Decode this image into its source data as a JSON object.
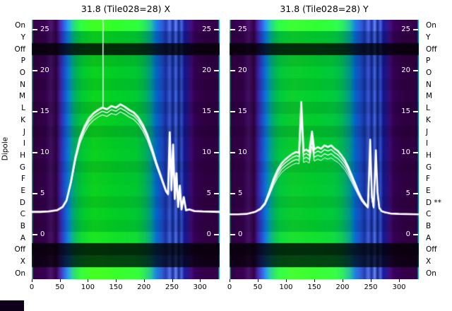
{
  "figure": {
    "dipole_label": "Dipole"
  },
  "row_labels_left": [
    "On",
    "Y",
    "Off",
    "P",
    "O",
    "N",
    "M",
    "L",
    "K",
    "J",
    "I",
    "H",
    "G",
    "F",
    "E",
    "D",
    "C",
    "B",
    "A",
    "Off",
    "X",
    "On"
  ],
  "row_labels_right": [
    "On",
    "Y",
    "Off",
    "P",
    "O",
    "N",
    "M",
    "L",
    "K",
    "J",
    "I",
    "H",
    "G",
    "F",
    "E",
    "D **",
    "C",
    "B",
    "A",
    "Off",
    "X",
    "On"
  ],
  "chart_data": [
    {
      "type": "heatmap",
      "title": "31.8 (Tile028=28) X",
      "x_ticks": [
        0,
        50,
        100,
        150,
        200,
        250,
        300
      ],
      "x_range": [
        0,
        335
      ],
      "y_ticks_inner": [
        25,
        20,
        15,
        10,
        5,
        0
      ],
      "v_top": 26.2,
      "v_bottom": -5.4,
      "show_right_ticks": true,
      "colormap_stops": [
        [
          0.0,
          "#00b478"
        ],
        [
          0.006,
          "#2e0040"
        ],
        [
          0.07,
          "#320048"
        ],
        [
          0.1,
          "#401060"
        ],
        [
          0.128,
          "#2e0040"
        ],
        [
          0.148,
          "#3c1e96"
        ],
        [
          0.168,
          "#1e46c8"
        ],
        [
          0.192,
          "#0a78d2"
        ],
        [
          0.213,
          "#00a08c"
        ],
        [
          0.238,
          "#00b450"
        ],
        [
          0.268,
          "#00c832"
        ],
        [
          0.33,
          "#0cd21e"
        ],
        [
          0.45,
          "#00cd26"
        ],
        [
          0.555,
          "#00c832"
        ],
        [
          0.6,
          "#00b44e"
        ],
        [
          0.635,
          "#00968c"
        ],
        [
          0.665,
          "#0064c8"
        ],
        [
          0.695,
          "#1e46be"
        ],
        [
          0.715,
          "#12309b"
        ],
        [
          0.735,
          "#3c5ad2"
        ],
        [
          0.752,
          "#0c2488"
        ],
        [
          0.768,
          "#4668e1"
        ],
        [
          0.783,
          "#0a1e78"
        ],
        [
          0.798,
          "#3250c8"
        ],
        [
          0.813,
          "#14148c"
        ],
        [
          0.83,
          "#1e1482"
        ],
        [
          0.85,
          "#3c0a6e"
        ],
        [
          0.87,
          "#320050"
        ],
        [
          0.93,
          "#2e0040"
        ],
        [
          0.993,
          "#2e0040"
        ],
        [
          1.0,
          "#0096b4"
        ]
      ],
      "rows": [
        [
          1.15,
          60,
          40,
          0
        ],
        [
          0.95,
          0,
          0,
          0
        ],
        [
          0.22,
          0,
          0,
          0
        ],
        [
          0.92,
          0,
          0,
          0
        ],
        [
          1.0,
          0,
          0,
          0
        ],
        [
          0.94,
          0,
          0,
          0
        ],
        [
          1.02,
          0,
          0,
          0
        ],
        [
          0.9,
          0,
          0,
          0
        ],
        [
          1.0,
          0,
          0,
          0
        ],
        [
          0.88,
          0,
          0,
          0
        ],
        [
          0.98,
          0,
          0,
          0
        ],
        [
          1.0,
          0,
          0,
          0
        ],
        [
          0.91,
          0,
          0,
          0
        ],
        [
          0.98,
          0,
          0,
          0
        ],
        [
          1.0,
          0,
          0,
          0
        ],
        [
          0.93,
          0,
          0,
          0
        ],
        [
          1.0,
          0,
          0,
          0
        ],
        [
          0.95,
          0,
          0,
          0
        ],
        [
          1.04,
          20,
          15,
          0
        ],
        [
          0.22,
          0,
          0,
          0
        ],
        [
          0.34,
          0,
          0,
          0
        ],
        [
          1.12,
          70,
          45,
          0
        ]
      ],
      "line": {
        "baseline": 2.8,
        "trace_scales": [
          1,
          0.965,
          0.93
        ],
        "trace_widths": [
          2.8,
          1.3,
          1.1
        ],
        "points": [
          [
            0,
            2.8
          ],
          [
            15,
            2.8
          ],
          [
            30,
            2.85
          ],
          [
            45,
            3.0
          ],
          [
            55,
            3.4
          ],
          [
            62,
            4.2
          ],
          [
            70,
            6.5
          ],
          [
            78,
            9.5
          ],
          [
            86,
            11.8
          ],
          [
            94,
            13.2
          ],
          [
            102,
            14.2
          ],
          [
            110,
            14.8
          ],
          [
            118,
            15.2
          ],
          [
            126,
            15.5
          ],
          [
            134,
            15.3
          ],
          [
            142,
            15.7
          ],
          [
            150,
            15.5
          ],
          [
            158,
            15.9
          ],
          [
            166,
            15.6
          ],
          [
            174,
            15.2
          ],
          [
            182,
            14.9
          ],
          [
            190,
            14.3
          ],
          [
            198,
            13.4
          ],
          [
            206,
            12.2
          ],
          [
            214,
            10.6
          ],
          [
            222,
            8.8
          ],
          [
            228,
            7.6
          ],
          [
            234,
            6.4
          ],
          [
            239,
            5.4
          ],
          [
            243,
            5.0
          ],
          [
            246,
            12.5
          ],
          [
            249,
            5.5
          ],
          [
            252,
            11.0
          ],
          [
            255,
            4.4
          ],
          [
            258,
            7.5
          ],
          [
            261,
            3.4
          ],
          [
            264,
            6.0
          ],
          [
            267,
            3.1
          ],
          [
            271,
            4.6
          ],
          [
            275,
            3.0
          ],
          [
            281,
            3.1
          ],
          [
            290,
            2.9
          ],
          [
            305,
            2.85
          ],
          [
            335,
            2.8
          ]
        ]
      },
      "spikes": [
        [
          127,
          15.5,
          26.2
        ]
      ]
    },
    {
      "type": "heatmap",
      "title": "31.8 (Tile028=28) Y",
      "x_ticks": [
        0,
        50,
        100,
        150,
        200,
        250,
        300
      ],
      "x_range": [
        0,
        335
      ],
      "y_ticks_inner": [
        25,
        20,
        15,
        10,
        5,
        0
      ],
      "v_top": 26.2,
      "v_bottom": -5.4,
      "show_right_ticks": true,
      "colormap_stops": [
        [
          0.0,
          "#00b478"
        ],
        [
          0.006,
          "#2e0040"
        ],
        [
          0.07,
          "#320048"
        ],
        [
          0.1,
          "#401060"
        ],
        [
          0.128,
          "#2e0040"
        ],
        [
          0.148,
          "#3c1e96"
        ],
        [
          0.168,
          "#1e46c8"
        ],
        [
          0.192,
          "#0a78d2"
        ],
        [
          0.213,
          "#009e96"
        ],
        [
          0.238,
          "#00b45a"
        ],
        [
          0.268,
          "#00c83c"
        ],
        [
          0.33,
          "#0ccd2d"
        ],
        [
          0.45,
          "#00cd2d"
        ],
        [
          0.555,
          "#00c83c"
        ],
        [
          0.6,
          "#00b45a"
        ],
        [
          0.635,
          "#00968c"
        ],
        [
          0.665,
          "#0064c8"
        ],
        [
          0.695,
          "#1e46be"
        ],
        [
          0.715,
          "#12309b"
        ],
        [
          0.735,
          "#3c5ad2"
        ],
        [
          0.752,
          "#0c2488"
        ],
        [
          0.768,
          "#4668e1"
        ],
        [
          0.783,
          "#0a1e78"
        ],
        [
          0.798,
          "#3250c8"
        ],
        [
          0.813,
          "#14148c"
        ],
        [
          0.83,
          "#1e1482"
        ],
        [
          0.85,
          "#3c0a6e"
        ],
        [
          0.87,
          "#320050"
        ],
        [
          0.93,
          "#2e0040"
        ],
        [
          0.993,
          "#2e0040"
        ],
        [
          1.0,
          "#0096b4"
        ]
      ],
      "rows": [
        [
          1.15,
          60,
          40,
          0
        ],
        [
          0.95,
          0,
          0,
          0
        ],
        [
          0.22,
          0,
          0,
          0
        ],
        [
          0.92,
          0,
          0,
          0
        ],
        [
          1.0,
          0,
          0,
          0
        ],
        [
          0.94,
          0,
          0,
          0
        ],
        [
          1.02,
          0,
          0,
          0
        ],
        [
          0.9,
          0,
          0,
          0
        ],
        [
          1.0,
          0,
          0,
          0
        ],
        [
          0.88,
          0,
          0,
          0
        ],
        [
          0.98,
          0,
          0,
          0
        ],
        [
          1.0,
          0,
          0,
          0
        ],
        [
          0.91,
          0,
          0,
          0
        ],
        [
          0.98,
          0,
          0,
          0
        ],
        [
          1.0,
          0,
          0,
          0
        ],
        [
          0.93,
          0,
          0,
          0
        ],
        [
          1.0,
          0,
          0,
          0
        ],
        [
          0.95,
          0,
          0,
          0
        ],
        [
          1.04,
          20,
          15,
          0
        ],
        [
          0.22,
          0,
          0,
          0
        ],
        [
          0.34,
          0,
          0,
          0
        ],
        [
          1.12,
          70,
          45,
          0
        ]
      ],
      "line": {
        "baseline": 2.5,
        "trace_scales": [
          1,
          0.94,
          0.88,
          0.82
        ],
        "trace_widths": [
          2.6,
          1.4,
          1.2,
          1.0
        ],
        "points": [
          [
            0,
            2.5
          ],
          [
            15,
            2.5
          ],
          [
            30,
            2.55
          ],
          [
            45,
            2.8
          ],
          [
            55,
            3.2
          ],
          [
            63,
            3.9
          ],
          [
            70,
            5.2
          ],
          [
            78,
            6.8
          ],
          [
            85,
            7.9
          ],
          [
            92,
            8.7
          ],
          [
            99,
            9.2
          ],
          [
            106,
            9.6
          ],
          [
            112,
            9.9
          ],
          [
            118,
            10.1
          ],
          [
            123,
            10.0
          ],
          [
            127,
            16.2
          ],
          [
            131,
            10.2
          ],
          [
            136,
            10.4
          ],
          [
            141,
            10.1
          ],
          [
            146,
            12.6
          ],
          [
            150,
            10.4
          ],
          [
            156,
            10.7
          ],
          [
            162,
            10.5
          ],
          [
            168,
            10.9
          ],
          [
            174,
            10.7
          ],
          [
            180,
            10.9
          ],
          [
            186,
            10.5
          ],
          [
            192,
            10.2
          ],
          [
            198,
            9.7
          ],
          [
            204,
            9.1
          ],
          [
            210,
            8.3
          ],
          [
            216,
            7.3
          ],
          [
            222,
            6.3
          ],
          [
            228,
            5.3
          ],
          [
            234,
            4.4
          ],
          [
            240,
            3.8
          ],
          [
            245,
            3.4
          ],
          [
            249,
            11.6
          ],
          [
            252,
            4.6
          ],
          [
            255,
            3.4
          ],
          [
            259,
            10.3
          ],
          [
            262,
            5.2
          ],
          [
            265,
            3.3
          ],
          [
            269,
            2.9
          ],
          [
            275,
            2.75
          ],
          [
            285,
            2.6
          ],
          [
            300,
            2.55
          ],
          [
            335,
            2.5
          ]
        ]
      },
      "spikes": []
    }
  ]
}
